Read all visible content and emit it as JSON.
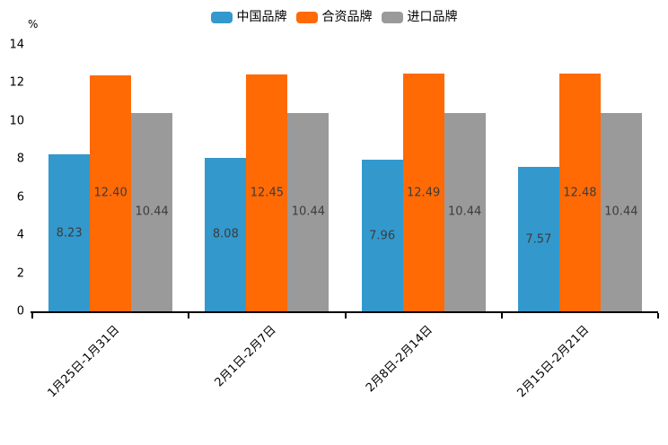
{
  "chart_data": {
    "type": "bar",
    "title": "",
    "unit_label": "%",
    "categories": [
      "1月25日-1月31日",
      "2月1日-2月7日",
      "2月8日-2月14日",
      "2月15日-2月21日"
    ],
    "series": [
      {
        "name": "中国品牌",
        "color": "#3398CC",
        "values": [
          8.23,
          8.08,
          7.96,
          7.57
        ]
      },
      {
        "name": "合资品牌",
        "color": "#FF6A05",
        "values": [
          12.4,
          12.45,
          12.49,
          12.48
        ]
      },
      {
        "name": "进口品牌",
        "color": "#9A9A9A",
        "values": [
          10.44,
          10.44,
          10.44,
          10.44
        ]
      }
    ],
    "value_label_decimals": 2,
    "value_label_color": "#3C3C3C",
    "axis_color": "#000000",
    "ylim": [
      0,
      14
    ],
    "ytick_step": 2,
    "grid": false,
    "legend_position": "top",
    "background_color": "#FFFFFF"
  }
}
